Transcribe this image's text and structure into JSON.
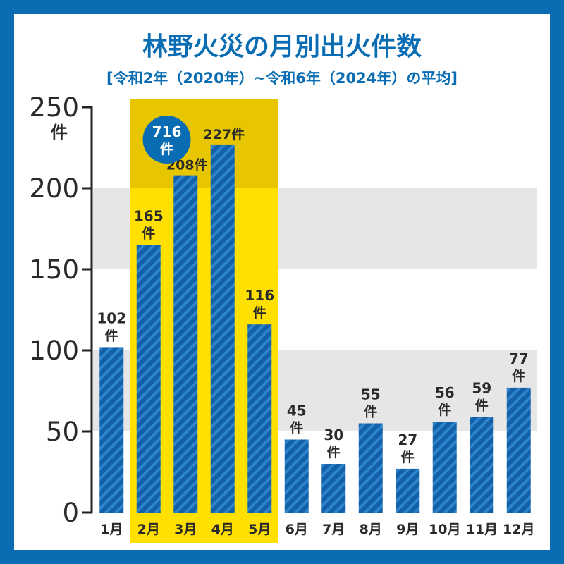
{
  "chart_data": {
    "type": "bar",
    "title": "林野火災の月別出火件数",
    "subtitle": "[令和2年（2020年）~令和6年（2024年）の平均]",
    "categories": [
      "1月",
      "2月",
      "3月",
      "4月",
      "5月",
      "6月",
      "7月",
      "8月",
      "9月",
      "10月",
      "11月",
      "12月"
    ],
    "values": [
      102,
      165,
      208,
      227,
      116,
      45,
      30,
      55,
      27,
      56,
      59,
      77
    ],
    "value_unit": "件",
    "ylim": [
      0,
      250
    ],
    "yticks": [
      0,
      50,
      100,
      150,
      200,
      250
    ],
    "y_unit_label": "件",
    "highlight": {
      "categories": [
        "2月",
        "3月",
        "4月",
        "5月"
      ],
      "total_value": "716",
      "total_unit": "件"
    },
    "grid": "alternating horizontal bands",
    "colors": {
      "frame": "#0a6db3",
      "bar": "#1460a8",
      "bar_stripe": "#2b84cc",
      "highlight_fill": "#ffe000",
      "highlight_fill_top": "#e7c600",
      "band": "#e6e6e6",
      "title": "#0a6db3",
      "text": "#2a2a2a",
      "axis": "#222222",
      "badge": "#0a6db3",
      "badge_text": "#ffffff"
    }
  }
}
